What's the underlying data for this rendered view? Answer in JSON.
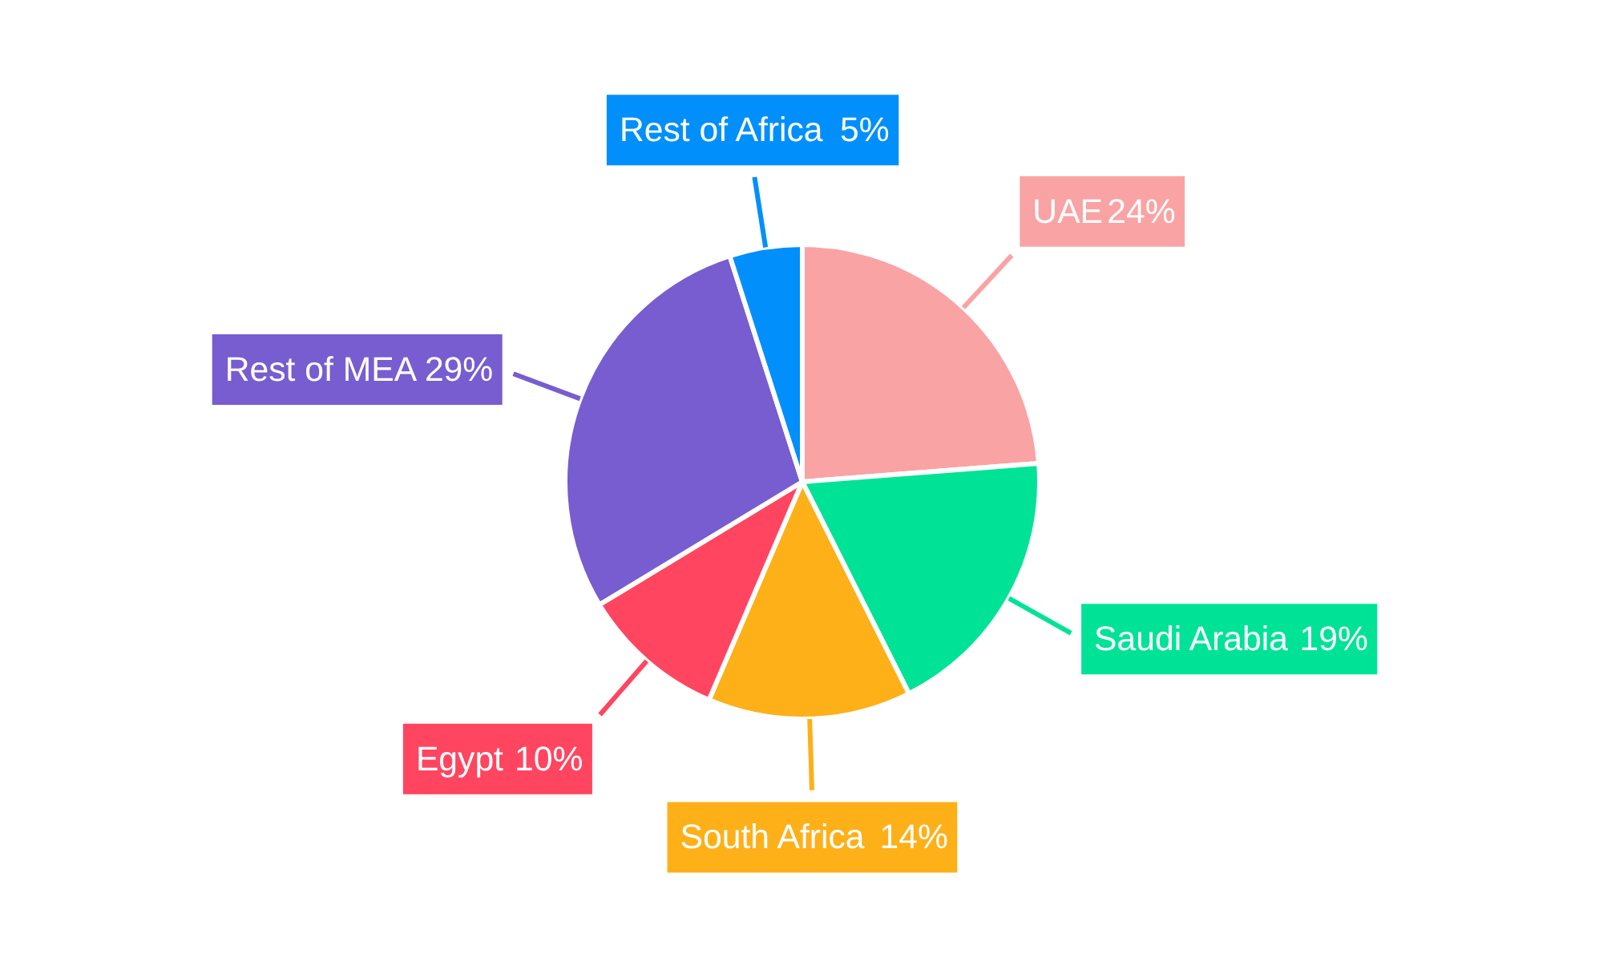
{
  "chart_data": {
    "type": "pie",
    "categories": [
      "UAE",
      "Saudi Arabia",
      "South Africa",
      "Egypt",
      "Rest of MEA",
      "Rest of Africa"
    ],
    "values": [
      24,
      19,
      14,
      10,
      29,
      5
    ],
    "colors": [
      "#f9a3a4",
      "#00e396",
      "#feb019",
      "#ff4560",
      "#775dd0",
      "#008ffb"
    ],
    "value_labels": [
      "24%",
      "19%",
      "14%",
      "10%",
      "29%",
      "5%"
    ],
    "legend": false
  }
}
